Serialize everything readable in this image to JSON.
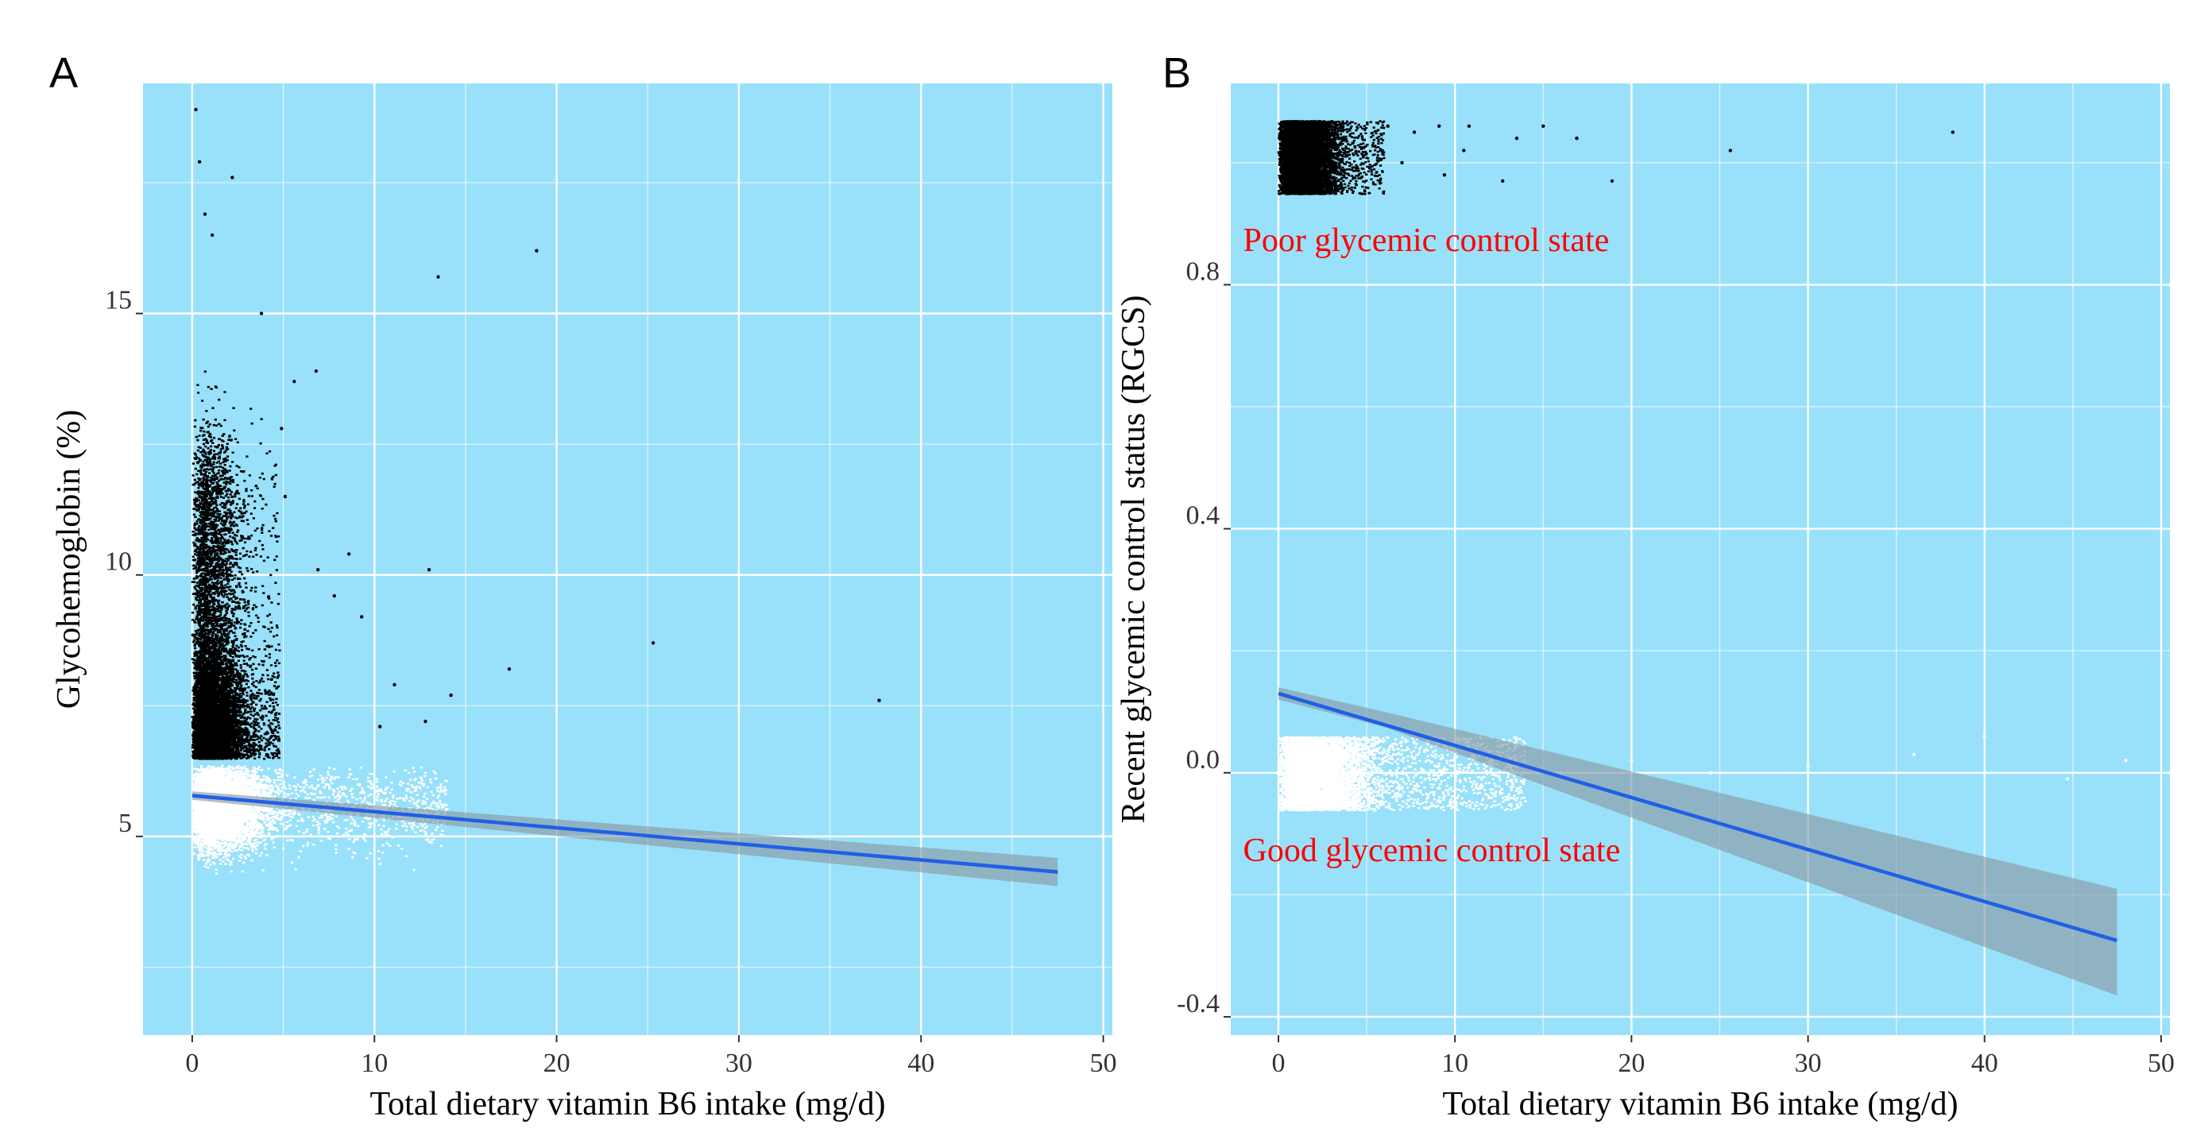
{
  "figure": {
    "background": "#ffffff",
    "panel_background": "#99e1fa",
    "grid_color": "#ffffff",
    "line_color": "#1f5fe8",
    "ci_color": "#8a9aa4",
    "high_point_color": "#000000",
    "low_point_color": "#ffffff",
    "annotation_color": "#ff0000"
  },
  "chart_data": [
    {
      "panel": "A",
      "type": "scatter",
      "title": "",
      "xlabel": "Total dietary vitamin B6 intake (mg/d)",
      "ylabel": "Glycohemoglobin (%)",
      "xlim": [
        -2.7,
        50.5
      ],
      "ylim": [
        1.2,
        19.4
      ],
      "xticks": [
        0,
        10,
        20,
        30,
        40,
        50
      ],
      "yticks": [
        5,
        10,
        15
      ],
      "x_minor_grid": [
        5,
        15,
        25,
        35,
        45
      ],
      "y_minor_grid": [
        2.5,
        7.5,
        12.5,
        17.5
      ],
      "threshold": 6.5,
      "point_cloud": {
        "black_above_threshold": {
          "x_range": [
            0,
            5
          ],
          "y_range": [
            6.5,
            15
          ]
        },
        "white_below_threshold": {
          "x_range": [
            0,
            15
          ],
          "y_range": [
            3.5,
            6.5
          ]
        }
      },
      "outlier_points": [
        [
          0.2,
          18.9
        ],
        [
          0.4,
          17.9
        ],
        [
          2.2,
          17.6
        ],
        [
          0.7,
          16.9
        ],
        [
          1.1,
          16.5
        ],
        [
          18.9,
          16.2
        ],
        [
          13.5,
          15.7
        ],
        [
          3.8,
          15.0
        ],
        [
          6.8,
          13.9
        ],
        [
          5.6,
          13.7
        ],
        [
          4.9,
          12.8
        ],
        [
          5.1,
          11.5
        ],
        [
          8.6,
          10.4
        ],
        [
          6.9,
          10.1
        ],
        [
          13.0,
          10.1
        ],
        [
          7.8,
          9.6
        ],
        [
          9.3,
          9.2
        ],
        [
          25.3,
          8.7
        ],
        [
          17.4,
          8.2
        ],
        [
          11.1,
          7.9
        ],
        [
          14.2,
          7.7
        ],
        [
          37.7,
          7.6
        ],
        [
          10.3,
          7.1
        ],
        [
          12.8,
          7.2
        ]
      ],
      "fit_line": {
        "x": [
          0,
          47.5
        ],
        "y": [
          5.78,
          4.32
        ]
      },
      "ci_band": {
        "x": [
          0,
          47.5
        ],
        "lower": [
          5.7,
          4.05
        ],
        "upper": [
          5.86,
          4.59
        ]
      }
    },
    {
      "panel": "B",
      "type": "scatter",
      "title": "",
      "xlabel": "Total dietary vitamin B6 intake (mg/d)",
      "ylabel": "Recent glycemic control status (RGCS)",
      "xlim": [
        -2.7,
        50.5
      ],
      "ylim": [
        -0.43,
        1.13
      ],
      "xticks": [
        0,
        10,
        20,
        30,
        40,
        50
      ],
      "yticks": [
        -0.4,
        0.0,
        0.4,
        0.8
      ],
      "x_minor_grid": [
        5,
        15,
        25,
        35,
        45
      ],
      "y_minor_grid": [
        -0.2,
        0.2,
        0.6,
        1.0
      ],
      "point_cloud": {
        "poor_control_jitter": {
          "center": 1.0,
          "x_range": [
            0,
            5
          ]
        },
        "good_control_jitter": {
          "center": 0.0,
          "x_range": [
            0,
            15
          ]
        }
      },
      "outlier_points": [
        [
          6.2,
          1.06
        ],
        [
          7.7,
          1.05
        ],
        [
          9.1,
          1.06
        ],
        [
          10.8,
          1.06
        ],
        [
          13.5,
          1.04
        ],
        [
          15.0,
          1.06
        ],
        [
          16.9,
          1.04
        ],
        [
          7.0,
          1.0
        ],
        [
          10.5,
          1.02
        ],
        [
          9.4,
          0.98
        ],
        [
          12.7,
          0.97
        ],
        [
          18.9,
          0.97
        ],
        [
          25.6,
          1.02
        ],
        [
          38.2,
          1.05
        ],
        [
          16.0,
          0.0
        ],
        [
          20.0,
          0.02
        ],
        [
          24.5,
          0.0
        ],
        [
          30.0,
          0.01
        ],
        [
          36.0,
          0.03
        ],
        [
          40.0,
          0.06
        ],
        [
          44.7,
          -0.01
        ],
        [
          48.0,
          0.02
        ]
      ],
      "fit_line": {
        "x": [
          0,
          47.5
        ],
        "y": [
          0.13,
          -0.275
        ]
      },
      "ci_band": {
        "x": [
          0,
          6,
          47.5
        ],
        "lower": [
          0.12,
          0.075,
          -0.365
        ],
        "upper": [
          0.14,
          0.1,
          -0.19
        ]
      },
      "annotations": [
        {
          "text": "Poor glycemic control state",
          "x": -2.0,
          "y": 0.855
        },
        {
          "text": "Good glycemic control state",
          "x": -2.0,
          "y": -0.145
        }
      ]
    }
  ]
}
